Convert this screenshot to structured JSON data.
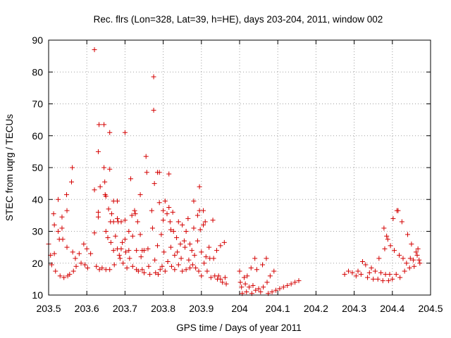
{
  "chart_data": {
    "type": "scatter",
    "title": "Rec. flrs (Lon=328, Lat=39, h=HE), days 203-204, 2011, window 002",
    "xlabel": "GPS time / Days of year 2011",
    "ylabel": "STEC from uqrg / TECUs",
    "xlim": [
      203.5,
      204.5
    ],
    "ylim": [
      10,
      90
    ],
    "xticks": [
      203.5,
      203.6,
      203.7,
      203.8,
      203.9,
      204.0,
      204.1,
      204.2,
      204.3,
      204.4,
      204.5
    ],
    "xtick_labels": [
      "203.5",
      "203.6",
      "203.7",
      "203.8",
      "203.9",
      "204",
      "204.1",
      "204.2",
      "204.3",
      "204.4",
      "204.5"
    ],
    "yticks": [
      10,
      20,
      30,
      40,
      50,
      60,
      70,
      80,
      90
    ],
    "ytick_labels": [
      "10",
      "20",
      "30",
      "40",
      "50",
      "60",
      "70",
      "80",
      "90"
    ],
    "grid": true,
    "marker": "+",
    "color": "#d40000",
    "series": [
      {
        "name": "STEC",
        "points": [
          [
            203.5,
            26.0
          ],
          [
            203.505,
            22.5
          ],
          [
            203.508,
            19.5
          ],
          [
            203.513,
            35.5
          ],
          [
            203.515,
            32.0
          ],
          [
            203.515,
            23.0
          ],
          [
            203.518,
            17.5
          ],
          [
            203.525,
            40.0
          ],
          [
            203.525,
            30.0
          ],
          [
            203.528,
            27.5
          ],
          [
            203.53,
            16.0
          ],
          [
            203.535,
            34.5
          ],
          [
            203.535,
            31.0
          ],
          [
            203.537,
            27.5
          ],
          [
            203.54,
            15.5
          ],
          [
            203.547,
            41.5
          ],
          [
            203.548,
            36.5
          ],
          [
            203.548,
            25.0
          ],
          [
            203.55,
            16.0
          ],
          [
            203.555,
            16.5
          ],
          [
            203.56,
            45.5
          ],
          [
            203.562,
            50.0
          ],
          [
            203.563,
            23.5
          ],
          [
            203.565,
            17.5
          ],
          [
            203.57,
            21.5
          ],
          [
            203.572,
            19.0
          ],
          [
            203.58,
            23.0
          ],
          [
            203.585,
            20.0
          ],
          [
            203.592,
            26.0
          ],
          [
            203.595,
            19.5
          ],
          [
            203.6,
            24.5
          ],
          [
            203.602,
            18.5
          ],
          [
            203.61,
            23.0
          ],
          [
            203.62,
            87.0
          ],
          [
            203.62,
            43.0
          ],
          [
            203.62,
            29.5
          ],
          [
            203.625,
            19.0
          ],
          [
            203.63,
            55.0
          ],
          [
            203.63,
            36.0
          ],
          [
            203.63,
            34.5
          ],
          [
            203.632,
            63.5
          ],
          [
            203.633,
            18.0
          ],
          [
            203.635,
            44.0
          ],
          [
            203.64,
            18.5
          ],
          [
            203.645,
            63.5
          ],
          [
            203.645,
            50.0
          ],
          [
            203.647,
            45.5
          ],
          [
            203.648,
            41.5
          ],
          [
            203.65,
            41.0
          ],
          [
            203.65,
            30.0
          ],
          [
            203.65,
            18.0
          ],
          [
            203.655,
            28.0
          ],
          [
            203.657,
            37.0
          ],
          [
            203.66,
            61.0
          ],
          [
            203.66,
            49.5
          ],
          [
            203.66,
            18.0
          ],
          [
            203.662,
            33.0
          ],
          [
            203.663,
            26.5
          ],
          [
            203.665,
            35.5
          ],
          [
            203.67,
            39.5
          ],
          [
            203.67,
            33.0
          ],
          [
            203.67,
            24.0
          ],
          [
            203.672,
            19.5
          ],
          [
            203.675,
            28.5
          ],
          [
            203.68,
            39.5
          ],
          [
            203.68,
            34.0
          ],
          [
            203.68,
            24.5
          ],
          [
            203.682,
            33.0
          ],
          [
            203.685,
            22.5
          ],
          [
            203.687,
            21.5
          ],
          [
            203.69,
            33.0
          ],
          [
            203.69,
            24.5
          ],
          [
            203.693,
            26.5
          ],
          [
            203.695,
            20.0
          ],
          [
            203.7,
            61.0
          ],
          [
            203.7,
            33.5
          ],
          [
            203.7,
            27.5
          ],
          [
            203.702,
            23.5
          ],
          [
            203.705,
            18.5
          ],
          [
            203.71,
            30.0
          ],
          [
            203.71,
            24.0
          ],
          [
            203.712,
            21.5
          ],
          [
            203.715,
            46.5
          ],
          [
            203.718,
            35.0
          ],
          [
            203.72,
            28.5
          ],
          [
            203.72,
            19.0
          ],
          [
            203.725,
            36.5
          ],
          [
            203.727,
            35.5
          ],
          [
            203.73,
            24.0
          ],
          [
            203.73,
            18.0
          ],
          [
            203.733,
            33.0
          ],
          [
            203.735,
            17.5
          ],
          [
            203.74,
            41.5
          ],
          [
            203.74,
            29.0
          ],
          [
            203.742,
            22.0
          ],
          [
            203.745,
            24.0
          ],
          [
            203.745,
            18.0
          ],
          [
            203.75,
            24.0
          ],
          [
            203.75,
            17.0
          ],
          [
            203.755,
            53.5
          ],
          [
            203.757,
            48.5
          ],
          [
            203.76,
            24.5
          ],
          [
            203.762,
            19.0
          ],
          [
            203.765,
            16.5
          ],
          [
            203.77,
            36.5
          ],
          [
            203.772,
            31.0
          ],
          [
            203.775,
            78.5
          ],
          [
            203.775,
            68.0
          ],
          [
            203.777,
            45.0
          ],
          [
            203.778,
            21.0
          ],
          [
            203.78,
            17.0
          ],
          [
            203.785,
            48.5
          ],
          [
            203.785,
            25.5
          ],
          [
            203.787,
            16.5
          ],
          [
            203.79,
            48.5
          ],
          [
            203.79,
            39.0
          ],
          [
            203.792,
            18.0
          ],
          [
            203.795,
            29.0
          ],
          [
            203.797,
            19.0
          ],
          [
            203.8,
            36.5
          ],
          [
            203.8,
            33.5
          ],
          [
            203.802,
            23.5
          ],
          [
            203.805,
            39.5
          ],
          [
            203.805,
            17.5
          ],
          [
            203.81,
            35.5
          ],
          [
            203.812,
            20.5
          ],
          [
            203.815,
            48.0
          ],
          [
            203.815,
            37.5
          ],
          [
            203.818,
            33.0
          ],
          [
            203.82,
            30.5
          ],
          [
            203.82,
            25.0
          ],
          [
            203.822,
            19.0
          ],
          [
            203.825,
            36.0
          ],
          [
            203.827,
            30.0
          ],
          [
            203.83,
            22.5
          ],
          [
            203.83,
            18.0
          ],
          [
            203.835,
            28.0
          ],
          [
            203.837,
            23.5
          ],
          [
            203.84,
            33.0
          ],
          [
            203.84,
            19.5
          ],
          [
            203.845,
            26.0
          ],
          [
            203.847,
            21.5
          ],
          [
            203.85,
            32.0
          ],
          [
            203.85,
            17.5
          ],
          [
            203.855,
            27.0
          ],
          [
            203.857,
            25.0
          ],
          [
            203.86,
            30.0
          ],
          [
            203.86,
            18.0
          ],
          [
            203.865,
            34.0
          ],
          [
            203.867,
            21.0
          ],
          [
            203.87,
            26.0
          ],
          [
            203.87,
            18.5
          ],
          [
            203.875,
            24.0
          ],
          [
            203.877,
            19.5
          ],
          [
            203.88,
            39.5
          ],
          [
            203.88,
            31.0
          ],
          [
            203.882,
            22.5
          ],
          [
            203.885,
            18.5
          ],
          [
            203.89,
            35.0
          ],
          [
            203.89,
            27.0
          ],
          [
            203.893,
            17.5
          ],
          [
            203.895,
            44.0
          ],
          [
            203.895,
            36.5
          ],
          [
            203.897,
            30.5
          ],
          [
            203.9,
            23.5
          ],
          [
            203.9,
            16.0
          ],
          [
            203.905,
            36.5
          ],
          [
            203.905,
            32.0
          ],
          [
            203.907,
            20.0
          ],
          [
            203.91,
            33.0
          ],
          [
            203.912,
            22.0
          ],
          [
            203.915,
            17.5
          ],
          [
            203.92,
            25.0
          ],
          [
            203.922,
            21.5
          ],
          [
            203.925,
            15.5
          ],
          [
            203.93,
            33.5
          ],
          [
            203.932,
            21.5
          ],
          [
            203.935,
            16.0
          ],
          [
            203.94,
            24.0
          ],
          [
            203.942,
            15.0
          ],
          [
            203.945,
            16.0
          ],
          [
            203.95,
            25.5
          ],
          [
            203.95,
            15.0
          ],
          [
            203.955,
            14.0
          ],
          [
            203.96,
            26.5
          ],
          [
            203.962,
            15.5
          ],
          [
            203.965,
            13.5
          ],
          [
            204.0,
            17.5
          ],
          [
            204.002,
            14.0
          ],
          [
            204.005,
            12.5
          ],
          [
            204.007,
            10.5
          ],
          [
            204.012,
            15.5
          ],
          [
            204.015,
            13.5
          ],
          [
            204.018,
            11.0
          ],
          [
            204.02,
            16.0
          ],
          [
            204.025,
            12.5
          ],
          [
            204.03,
            18.5
          ],
          [
            204.032,
            10.5
          ],
          [
            204.035,
            13.0
          ],
          [
            204.04,
            21.5
          ],
          [
            204.042,
            11.5
          ],
          [
            204.045,
            18.0
          ],
          [
            204.05,
            12.0
          ],
          [
            204.055,
            11.0
          ],
          [
            204.06,
            19.5
          ],
          [
            204.062,
            12.5
          ],
          [
            204.07,
            21.5
          ],
          [
            204.072,
            14.0
          ],
          [
            204.075,
            10.5
          ],
          [
            204.08,
            16.0
          ],
          [
            204.085,
            11.0
          ],
          [
            204.09,
            17.5
          ],
          [
            204.095,
            11.5
          ],
          [
            204.105,
            12.0
          ],
          [
            204.115,
            12.5
          ],
          [
            204.125,
            13.0
          ],
          [
            204.135,
            13.5
          ],
          [
            204.145,
            14.0
          ],
          [
            204.155,
            14.5
          ],
          [
            204.275,
            16.5
          ],
          [
            204.285,
            17.5
          ],
          [
            204.295,
            17.0
          ],
          [
            204.305,
            16.0
          ],
          [
            204.31,
            17.5
          ],
          [
            204.318,
            16.5
          ],
          [
            204.322,
            20.5
          ],
          [
            204.33,
            19.5
          ],
          [
            204.335,
            15.5
          ],
          [
            204.34,
            17.0
          ],
          [
            204.345,
            18.5
          ],
          [
            204.35,
            15.0
          ],
          [
            204.355,
            17.5
          ],
          [
            204.362,
            15.0
          ],
          [
            204.365,
            21.5
          ],
          [
            204.37,
            17.0
          ],
          [
            204.375,
            14.5
          ],
          [
            204.378,
            31.0
          ],
          [
            204.38,
            24.5
          ],
          [
            204.382,
            16.5
          ],
          [
            204.385,
            28.5
          ],
          [
            204.388,
            27.5
          ],
          [
            204.39,
            14.5
          ],
          [
            204.393,
            16.5
          ],
          [
            204.395,
            25.5
          ],
          [
            204.4,
            15.0
          ],
          [
            204.402,
            34.0
          ],
          [
            204.405,
            24.0
          ],
          [
            204.41,
            16.5
          ],
          [
            204.412,
            36.5
          ],
          [
            204.415,
            36.5
          ],
          [
            204.418,
            22.5
          ],
          [
            204.42,
            15.5
          ],
          [
            204.425,
            33.0
          ],
          [
            204.428,
            21.5
          ],
          [
            204.432,
            17.5
          ],
          [
            204.437,
            20.0
          ],
          [
            204.44,
            29.0
          ],
          [
            204.445,
            18.5
          ],
          [
            204.447,
            21.5
          ],
          [
            204.45,
            26.0
          ],
          [
            204.455,
            21.0
          ],
          [
            204.457,
            19.0
          ],
          [
            204.462,
            23.5
          ],
          [
            204.465,
            22.5
          ],
          [
            204.467,
            24.5
          ],
          [
            204.47,
            21.0
          ],
          [
            204.472,
            20.0
          ]
        ]
      }
    ]
  }
}
